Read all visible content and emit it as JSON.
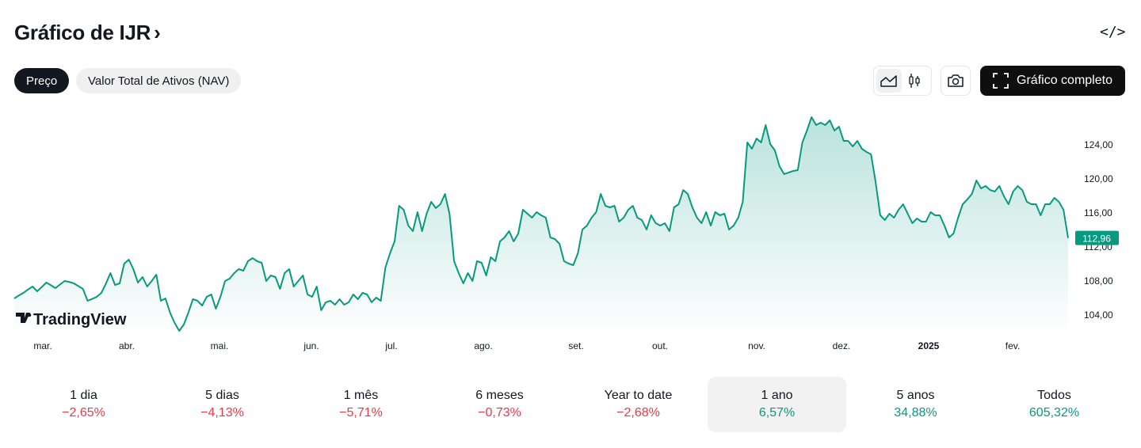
{
  "header": {
    "title": "Gráfico de IJR",
    "chevron": "›",
    "embed_icon": "code-icon"
  },
  "tabs": [
    {
      "label": "Preço",
      "active": true
    },
    {
      "label": "Valor Total de Ativos (NAV)",
      "active": false
    }
  ],
  "toolbar": {
    "chart_types": [
      {
        "icon": "area-chart-icon",
        "selected": true
      },
      {
        "icon": "candles-icon",
        "selected": false
      }
    ],
    "snapshot_icon": "camera-icon",
    "full_chart_label": "Gráfico completo",
    "full_chart_icon": "fullscreen-icon"
  },
  "colors": {
    "line": "#089981",
    "negative": "#f23645",
    "positive": "#089981",
    "dark": "#131722"
  },
  "chart_data": {
    "type": "area",
    "y_ticks": [
      "104,00",
      "108,00",
      "112,00",
      "116,00",
      "120,00",
      "124,00"
    ],
    "ylim": [
      102,
      127.5
    ],
    "x_labels": [
      "mar.",
      "abr.",
      "mai.",
      "jun.",
      "jul.",
      "ago.",
      "set.",
      "out.",
      "nov.",
      "dez.",
      "2025",
      "fev."
    ],
    "last_price": 112.96,
    "last_price_label": "112,96",
    "watermark": "TradingView",
    "values": [
      105.86,
      106.2,
      106.51,
      106.9,
      107.26,
      106.7,
      107.2,
      107.72,
      107.4,
      107.07,
      107.5,
      107.91,
      107.8,
      107.63,
      107.3,
      106.98,
      105.58,
      105.8,
      106.05,
      106.51,
      107.6,
      108.84,
      107.44,
      107.63,
      109.95,
      110.42,
      109.3,
      107.72,
      108.37,
      107.26,
      107.91,
      108.65,
      105.58,
      105.86,
      104.19,
      102.98,
      102.05,
      102.79,
      104.19,
      105.77,
      105.58,
      105.02,
      106.05,
      106.33,
      104.65,
      106.05,
      107.91,
      108.19,
      108.84,
      109.3,
      109.12,
      110.23,
      110.6,
      110.23,
      110.05,
      107.91,
      108.56,
      108.37,
      106.98,
      108.84,
      109.3,
      107.26,
      107.91,
      108.56,
      106.33,
      106.05,
      107.26,
      104.47,
      105.4,
      105.58,
      105.12,
      105.77,
      105.12,
      105.4,
      106.33,
      105.77,
      106.51,
      106.33,
      105.4,
      105.95,
      105.58,
      109.49,
      111.16,
      112.56,
      116.74,
      116.28,
      114.42,
      113.77,
      116.0,
      113.77,
      115.81,
      117.21,
      116.47,
      116.93,
      118.14,
      115.81,
      110.23,
      108.84,
      107.63,
      108.84,
      107.91,
      110.23,
      110.05,
      108.56,
      110.7,
      110.23,
      112.56,
      113.02,
      113.77,
      112.56,
      113.49,
      116.28,
      115.81,
      115.35,
      116.0,
      115.63,
      115.35,
      113.02,
      112.84,
      112.28,
      110.23,
      109.95,
      109.77,
      111.16,
      113.95,
      114.42,
      115.35,
      116.0,
      118.14,
      116.74,
      116.56,
      116.74,
      114.88,
      115.35,
      116.28,
      116.74,
      115.35,
      115.07,
      113.95,
      115.63,
      114.7,
      114.42,
      114.7,
      113.77,
      116.56,
      116.93,
      118.6,
      118.14,
      116.56,
      115.35,
      114.7,
      116.0,
      114.42,
      116.0,
      115.63,
      115.81,
      113.95,
      114.42,
      115.35,
      117.21,
      124.19,
      123.44,
      124.65,
      124.19,
      126.23,
      124.0,
      123.26,
      121.4,
      120.47,
      120.65,
      120.84,
      120.93,
      124.19,
      125.58,
      127.16,
      126.23,
      126.51,
      126.23,
      126.79,
      125.58,
      126.05,
      124.37,
      124.37,
      123.72,
      124.37,
      123.44,
      123.07,
      122.79,
      119.53,
      115.63,
      115.07,
      115.81,
      115.35,
      116.28,
      116.93,
      115.81,
      114.7,
      115.26,
      114.88,
      114.88,
      116.0,
      115.63,
      115.63,
      114.42,
      113.02,
      113.49,
      115.35,
      116.93,
      117.49,
      118.14,
      119.72,
      118.79,
      119.07,
      118.6,
      118.42,
      119.07,
      117.86,
      116.93,
      118.42,
      119.07,
      118.6,
      117.21,
      116.93,
      116.93,
      115.63,
      116.93,
      116.93,
      117.67,
      117.21,
      116.28,
      112.96
    ]
  },
  "periods": [
    {
      "label": "1 dia",
      "change": "−2,65%",
      "dir": "neg",
      "selected": false
    },
    {
      "label": "5 dias",
      "change": "−4,13%",
      "dir": "neg",
      "selected": false
    },
    {
      "label": "1 mês",
      "change": "−5,71%",
      "dir": "neg",
      "selected": false
    },
    {
      "label": "6 meses",
      "change": "−0,73%",
      "dir": "neg",
      "selected": false
    },
    {
      "label": "Year to date",
      "change": "−2,68%",
      "dir": "neg",
      "selected": false
    },
    {
      "label": "1 ano",
      "change": "6,57%",
      "dir": "pos",
      "selected": true
    },
    {
      "label": "5 anos",
      "change": "34,88%",
      "dir": "pos",
      "selected": false
    },
    {
      "label": "Todos",
      "change": "605,32%",
      "dir": "pos",
      "selected": false
    }
  ]
}
